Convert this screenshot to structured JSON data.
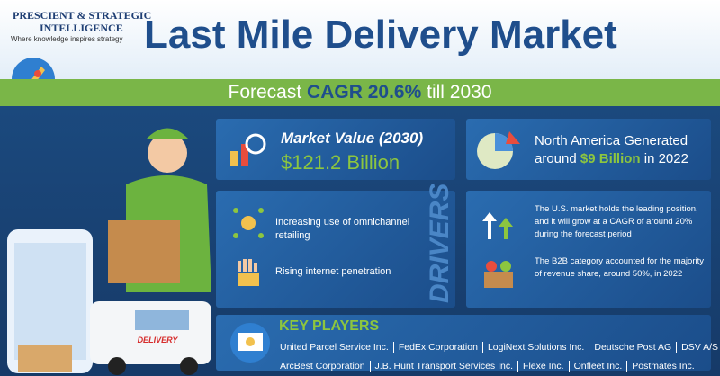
{
  "logo": {
    "line1": "PRESCIENT & STRATEGIC",
    "line2": "INTELLIGENCE",
    "tagline": "Where knowledge inspires strategy"
  },
  "header": {
    "title": "Last Mile Delivery Market"
  },
  "banner": {
    "prefix": "Forecast",
    "highlight": "CAGR 20.6%",
    "suffix": "till 2030"
  },
  "market_value": {
    "label": "Market Value (2030)",
    "value": "$121.2 Billion"
  },
  "north_america": {
    "line1": "North America Generated",
    "prefix": "around",
    "highlight": "$9 Billion",
    "suffix": "in 2022"
  },
  "drivers": {
    "title": "DRIVERS",
    "items": [
      "Increasing use of omnichannel retailing",
      "Rising internet penetration"
    ]
  },
  "insights": [
    "The U.S. market holds the leading position, and it will grow at a CAGR of around 20% during the forecast period",
    "The B2B category accounted for the majority of revenue share, around 50%, in 2022"
  ],
  "illustration": {
    "van_label": "DELIVERY"
  },
  "key_players": {
    "title": "KEY PLAYERS",
    "rows": [
      [
        "United Parcel Service Inc.",
        "FedEx Corporation",
        "LogiNext Solutions Inc.",
        "Deutsche Post AG",
        "DSV A/S"
      ],
      [
        "ArcBest Corporation",
        "J.B. Hunt Transport Services Inc.",
        "Flexe Inc.",
        "Onfleet Inc.",
        "Postmates Inc."
      ]
    ]
  }
}
